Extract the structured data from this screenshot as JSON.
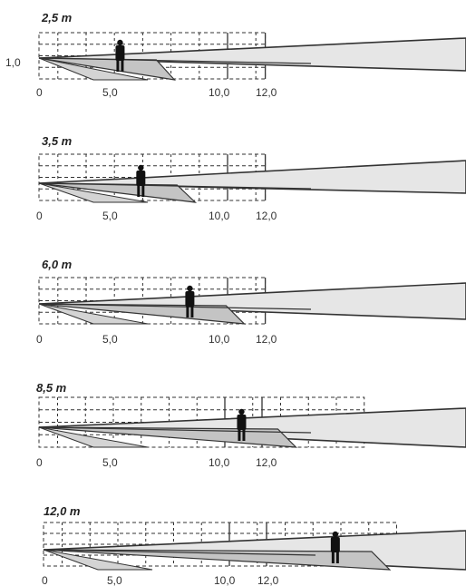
{
  "diagrams": [
    {
      "title": "2,5 m",
      "height_label": "1,0",
      "person_distance": 4.3,
      "zone_end": 12.0,
      "ticks": [
        "0",
        "5,0",
        "10,0",
        "12,0"
      ]
    },
    {
      "title": "3,5 m",
      "height_label": "",
      "person_distance": 5.4,
      "zone_end": 12.0,
      "ticks": [
        "0",
        "5,0",
        "10,0",
        "12,0"
      ]
    },
    {
      "title": "6,0 m",
      "height_label": "",
      "person_distance": 8.0,
      "zone_end": 12.0,
      "ticks": [
        "0",
        "5,0",
        "10,0",
        "12,0"
      ]
    },
    {
      "title": "8,5 m",
      "height_label": "",
      "person_distance": 10.9,
      "zone_end": 17.5,
      "ticks": [
        "0",
        "5,0",
        "10,0",
        "12,0"
      ]
    },
    {
      "title": "12,0 m",
      "height_label": "",
      "person_distance": 15.7,
      "zone_end": 19.0,
      "ticks": [
        "0",
        "5,0",
        "10,0",
        "12,0"
      ]
    }
  ],
  "colors": {
    "beam_fill": "#e6e6e6",
    "beam_core": "#c4c4c4",
    "line": "#333333",
    "figure": "#111111"
  }
}
